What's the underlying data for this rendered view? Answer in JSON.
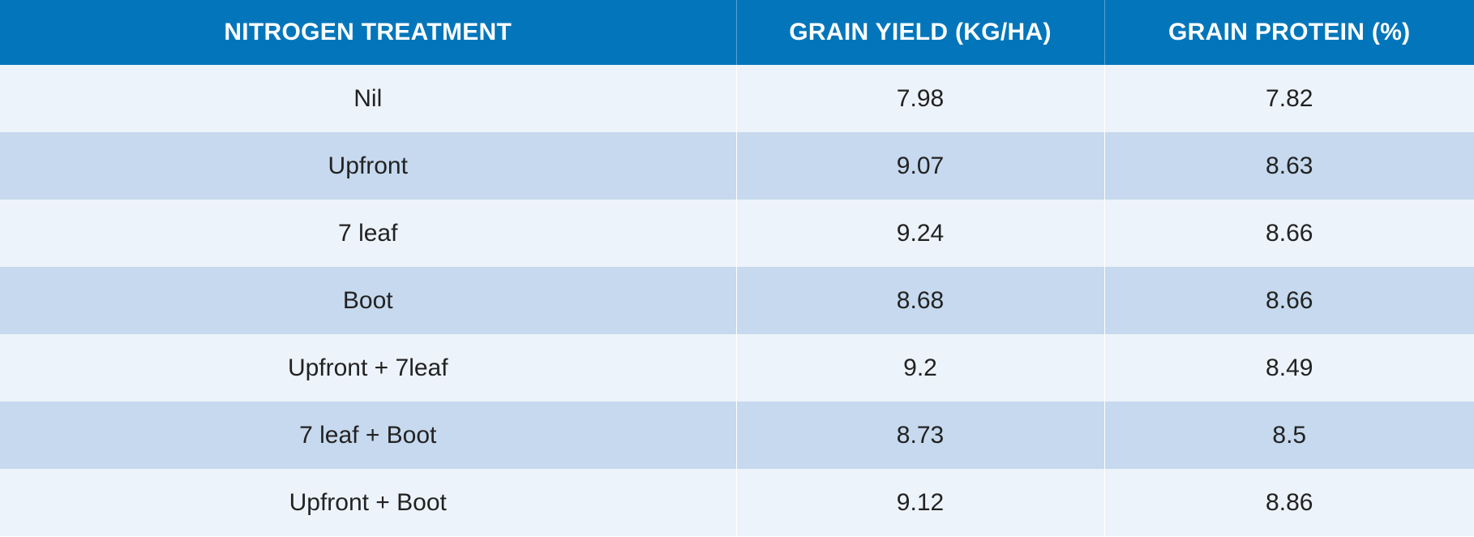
{
  "colors": {
    "header_bg": "#0376bb",
    "header_text": "#ffffff",
    "row_light": "#edf3fa",
    "row_dark": "#c6d9ee"
  },
  "chart_data": {
    "type": "table",
    "columns": [
      "NITROGEN TREATMENT",
      "GRAIN YIELD (KG/HA)",
      "GRAIN PROTEIN (%)"
    ],
    "rows": [
      [
        "Nil",
        "7.98",
        "7.82"
      ],
      [
        "Upfront",
        "9.07",
        "8.63"
      ],
      [
        "7 leaf",
        "9.24",
        "8.66"
      ],
      [
        "Boot",
        "8.68",
        "8.66"
      ],
      [
        "Upfront + 7leaf",
        "9.2",
        "8.49"
      ],
      [
        "7 leaf + Boot",
        "8.73",
        "8.5"
      ],
      [
        "Upfront + Boot",
        "9.12",
        "8.86"
      ]
    ]
  }
}
